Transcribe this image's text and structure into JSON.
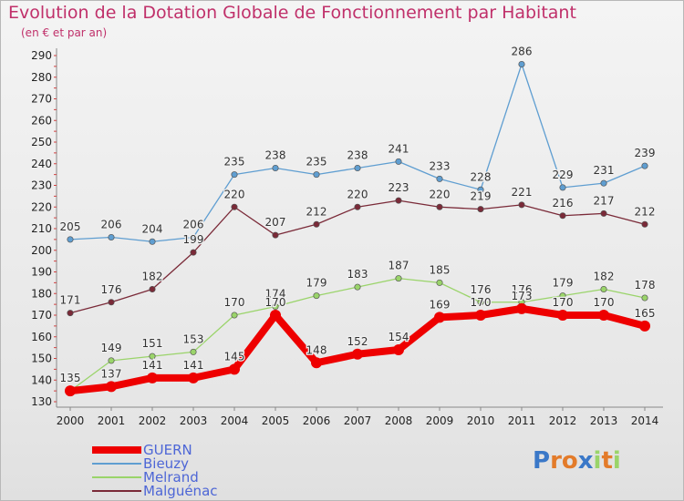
{
  "chart_data": {
    "type": "line",
    "title": "Evolution de la Dotation Globale de Fonctionnement par Habitant",
    "subtitle": "(en € et par an)",
    "xlabel": "",
    "ylabel": "",
    "x": [
      "2000",
      "2001",
      "2002",
      "2003",
      "2004",
      "2005",
      "2006",
      "2007",
      "2008",
      "2009",
      "2010",
      "2011",
      "2012",
      "2013",
      "2014"
    ],
    "ylim": [
      130,
      290
    ],
    "yticks": [
      130,
      140,
      150,
      160,
      170,
      180,
      190,
      200,
      210,
      220,
      230,
      240,
      250,
      260,
      270,
      280,
      290
    ],
    "grid": false,
    "legend_position": "bottom-left",
    "series": [
      {
        "name": "GUERN",
        "color": "#ee0000",
        "values": [
          135,
          137,
          141,
          141,
          145,
          170,
          148,
          152,
          154,
          169,
          170,
          173,
          170,
          170,
          165
        ]
      },
      {
        "name": "Bieuzy",
        "color": "#5f9ed1",
        "values": [
          205,
          206,
          204,
          206,
          235,
          238,
          235,
          238,
          241,
          233,
          228,
          286,
          229,
          231,
          239
        ]
      },
      {
        "name": "Melrand",
        "color": "#9ad46a",
        "values": [
          135,
          149,
          151,
          153,
          170,
          174,
          179,
          183,
          187,
          185,
          176,
          176,
          179,
          182,
          178
        ]
      },
      {
        "name": "Malguénac",
        "color": "#7a2a38",
        "values": [
          171,
          176,
          182,
          199,
          220,
          207,
          212,
          220,
          223,
          220,
          219,
          221,
          216,
          217,
          212
        ]
      }
    ]
  },
  "brand": {
    "text": "Proxiti"
  }
}
